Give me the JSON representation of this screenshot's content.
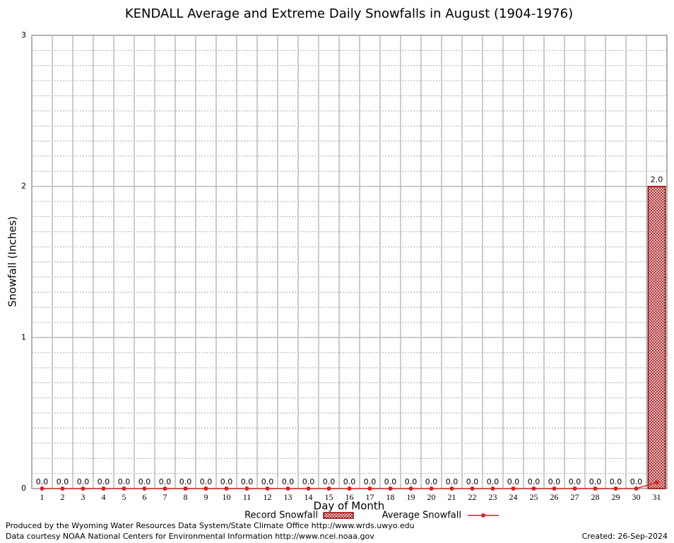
{
  "chart_data": {
    "type": "bar",
    "title": "KENDALL Average and Extreme Daily Snowfalls in August (1904-1976)",
    "x_label": "Day of Month",
    "y_label": "Snowfall (Inches)",
    "categories": [
      "1",
      "2",
      "3",
      "4",
      "5",
      "6",
      "7",
      "8",
      "9",
      "10",
      "11",
      "12",
      "13",
      "14",
      "15",
      "16",
      "17",
      "18",
      "19",
      "20",
      "21",
      "22",
      "23",
      "24",
      "25",
      "26",
      "27",
      "28",
      "29",
      "30",
      "31"
    ],
    "series": [
      {
        "name": "Record Snowfall",
        "type": "bar",
        "color": "#cc0000",
        "values": [
          0,
          0,
          0,
          0,
          0,
          0,
          0,
          0,
          0,
          0,
          0,
          0,
          0,
          0,
          0,
          0,
          0,
          0,
          0,
          0,
          0,
          0,
          0,
          0,
          0,
          0,
          0,
          0,
          0,
          0,
          2
        ],
        "value_labels": [
          "0.0",
          "0.0",
          "0.0",
          "0.0",
          "0.0",
          "0.0",
          "0.0",
          "0.0",
          "0.0",
          "0.0",
          "0.0",
          "0.0",
          "0.0",
          "0.0",
          "0.0",
          "0.0",
          "0.0",
          "0.0",
          "0.0",
          "0.0",
          "0.0",
          "0.0",
          "0.0",
          "0.0",
          "0.0",
          "0.0",
          "0.0",
          "0.0",
          "0.0",
          "0.0",
          "2.0"
        ]
      },
      {
        "name": "Average Snowfall",
        "type": "line",
        "color": "#dd2222",
        "values": [
          0,
          0,
          0,
          0,
          0,
          0,
          0,
          0,
          0,
          0,
          0,
          0,
          0,
          0,
          0,
          0,
          0,
          0,
          0,
          0,
          0,
          0,
          0,
          0,
          0,
          0,
          0,
          0,
          0,
          0,
          0.04
        ]
      }
    ],
    "ylim": [
      0,
      3
    ],
    "yticks": [
      0,
      1,
      2,
      3
    ],
    "grid": true,
    "legend": "bottom",
    "footer_left": [
      "Produced by the Wyoming Water Resources Data System/State Climate Office http://www.wrds.uwyo.edu",
      "Data courtesy NOAA National Centers for Environmental Information http://www.ncei.noaa.gov"
    ],
    "footer_right": "Created:  26-Sep-2024"
  }
}
